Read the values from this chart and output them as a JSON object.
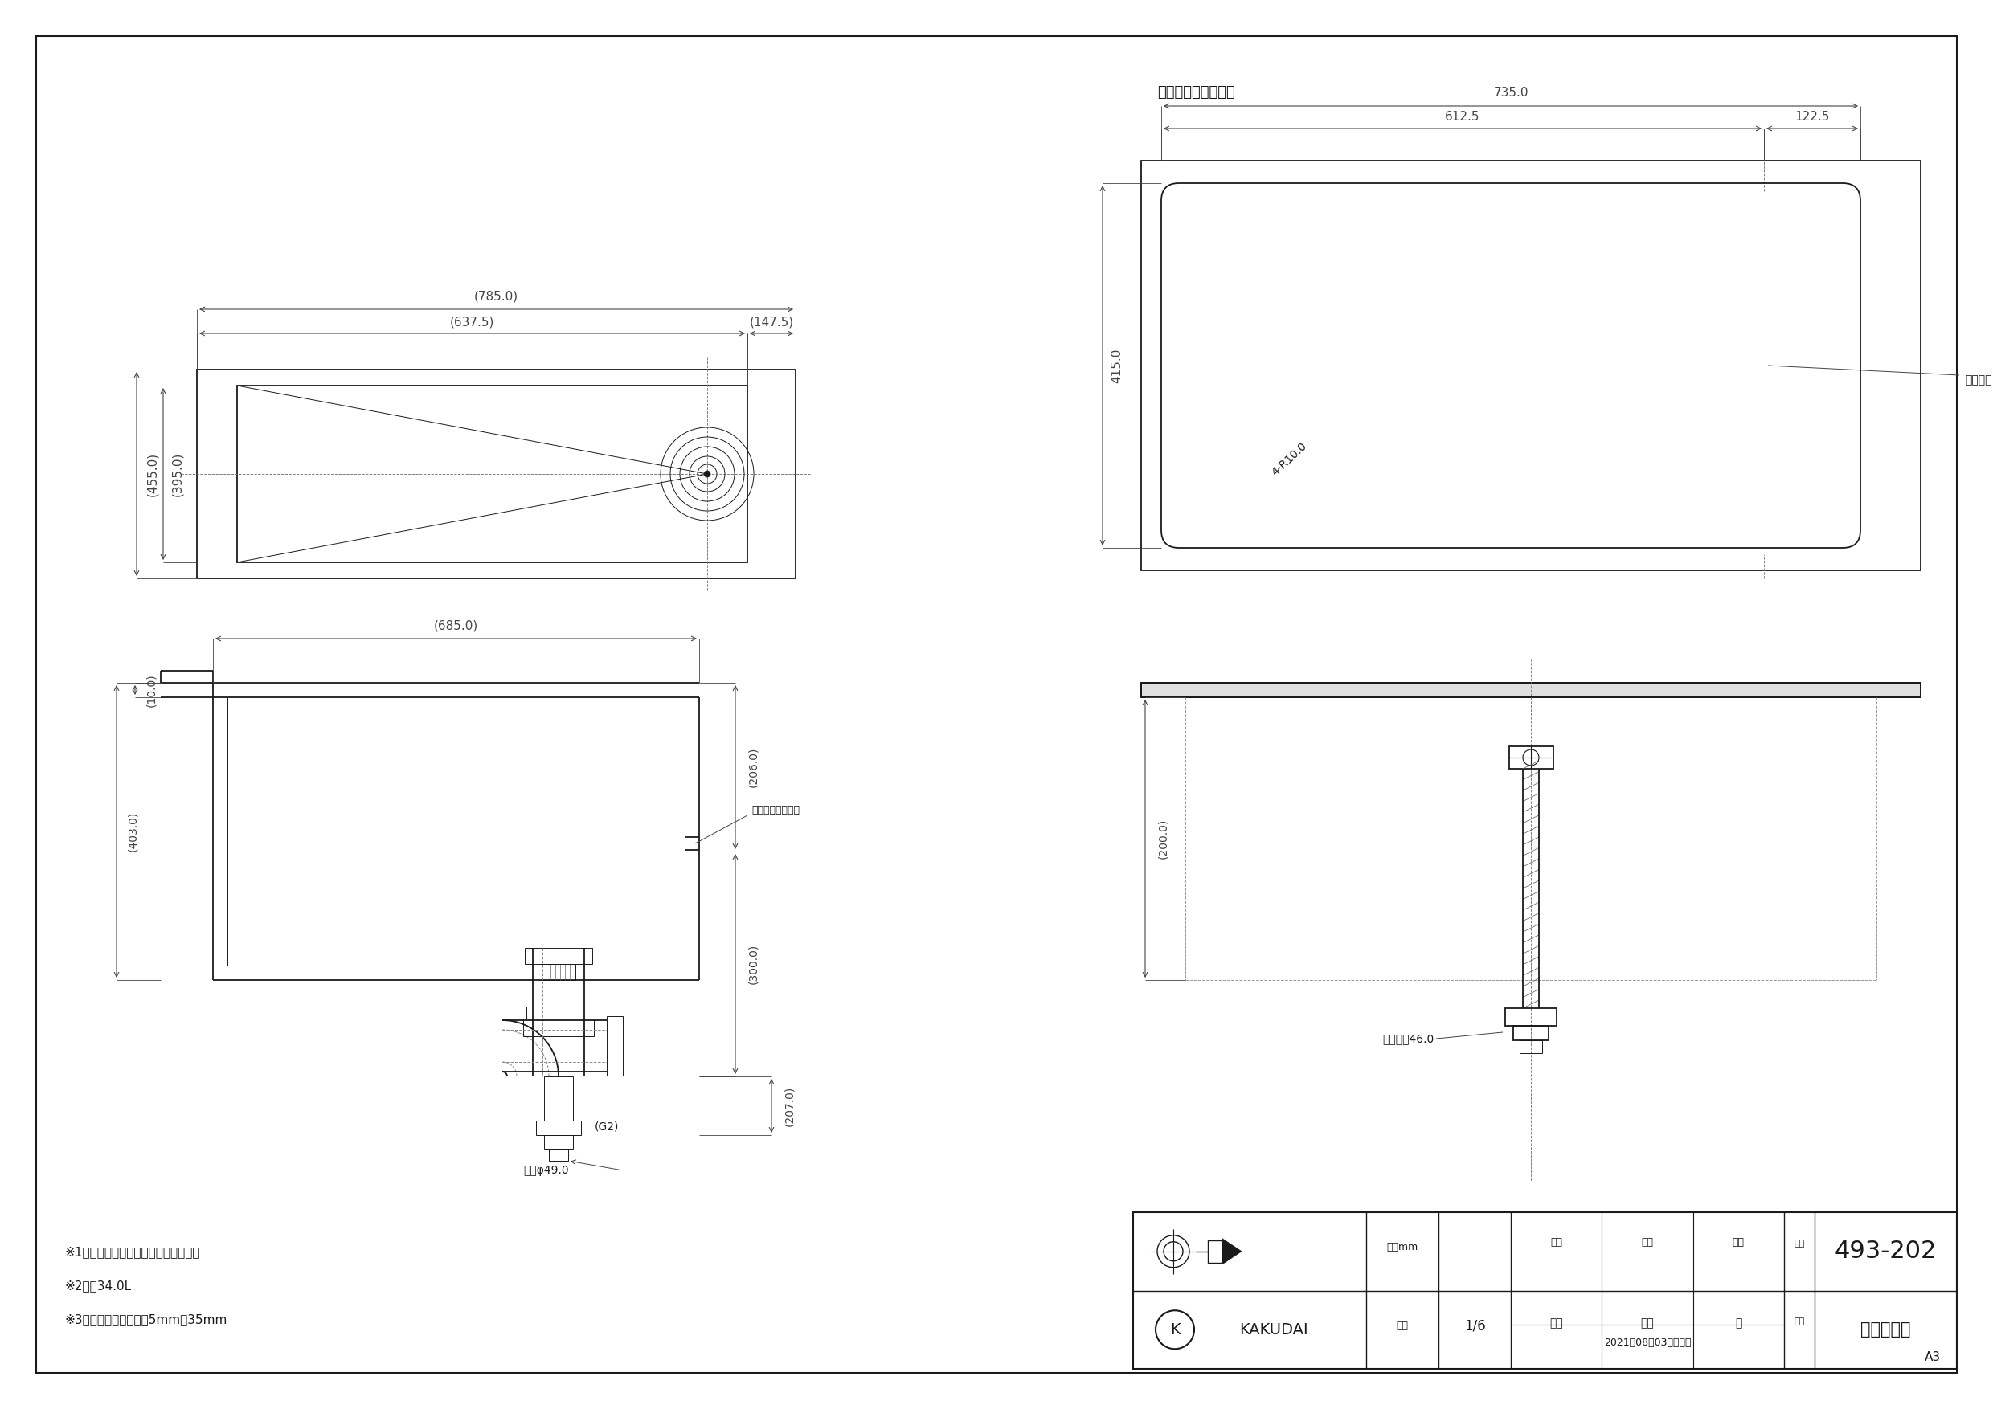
{
  "page_bg": "#ffffff",
  "lc": "#1a1a1a",
  "dc": "#444444",
  "lw": 1.3,
  "lwt": 0.7,
  "lwc": 0.65,
  "title_cutout": "カウンター切込寸法",
  "model_number": "493-202",
  "product_name": "角型洗面器",
  "unit_label": "単位mm",
  "scale_label": "尺度",
  "scale_value": "1/6",
  "date_str": "2021年08月03日　作成",
  "notes": [
    "※1　（　）内寸法は参考寸法である。",
    "※2　容34.0L",
    "※3　カウンター厚み：5mm～35mm"
  ],
  "staff": [
    "梶川",
    "甲藤",
    "祝"
  ],
  "headers": [
    "製図",
    "検図",
    "承認"
  ],
  "a3": "A3",
  "ovf_label": "オーバーフロー穴",
  "drain_label": "排水中心",
  "r10_label": "4-R10.0",
  "g2_label": "(G2)",
  "naikei_label": "内径φ49.0",
  "hakkaku_label": "八角対辺46.0"
}
